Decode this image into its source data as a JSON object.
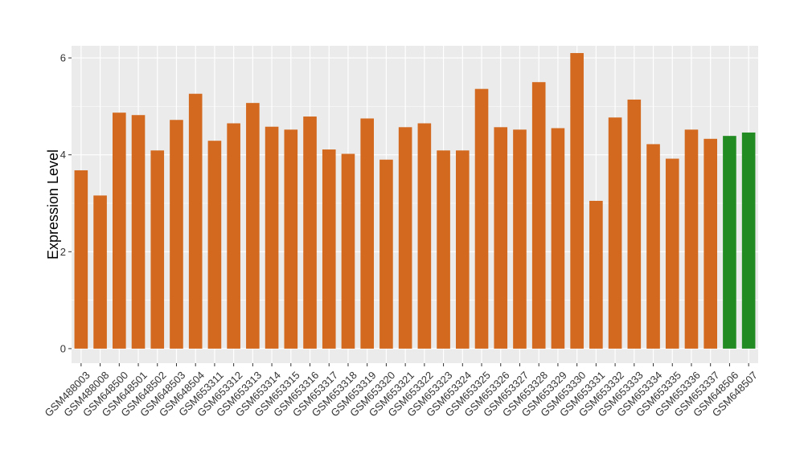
{
  "chart_data": {
    "type": "bar",
    "title": "",
    "xlabel": "",
    "ylabel": "Expression Level",
    "ylim": [
      -0.3,
      6.25
    ],
    "yticks": [
      0,
      2,
      4,
      6
    ],
    "grid": true,
    "categories": [
      "GSM488003",
      "GSM488008",
      "GSM648500",
      "GSM648501",
      "GSM648502",
      "GSM648503",
      "GSM648504",
      "GSM653311",
      "GSM653312",
      "GSM653313",
      "GSM653314",
      "GSM653315",
      "GSM653316",
      "GSM653317",
      "GSM653318",
      "GSM653319",
      "GSM653320",
      "GSM653321",
      "GSM653322",
      "GSM653323",
      "GSM653324",
      "GSM653325",
      "GSM653326",
      "GSM653327",
      "GSM653328",
      "GSM653329",
      "GSM653330",
      "GSM653331",
      "GSM653332",
      "GSM653333",
      "GSM653334",
      "GSM653335",
      "GSM653336",
      "GSM653337",
      "GSM648506",
      "GSM648507"
    ],
    "values": [
      3.68,
      3.16,
      4.87,
      4.82,
      4.09,
      4.72,
      5.26,
      4.29,
      4.65,
      5.07,
      4.58,
      4.52,
      4.79,
      4.11,
      4.02,
      4.75,
      3.9,
      4.57,
      4.65,
      4.09,
      4.09,
      5.36,
      4.57,
      4.52,
      5.5,
      4.55,
      6.1,
      3.05,
      4.77,
      5.14,
      4.22,
      3.92,
      4.52,
      4.33,
      4.39,
      4.46
    ],
    "colors": [
      "#D2691E",
      "#D2691E",
      "#D2691E",
      "#D2691E",
      "#D2691E",
      "#D2691E",
      "#D2691E",
      "#D2691E",
      "#D2691E",
      "#D2691E",
      "#D2691E",
      "#D2691E",
      "#D2691E",
      "#D2691E",
      "#D2691E",
      "#D2691E",
      "#D2691E",
      "#D2691E",
      "#D2691E",
      "#D2691E",
      "#D2691E",
      "#D2691E",
      "#D2691E",
      "#D2691E",
      "#D2691E",
      "#D2691E",
      "#D2691E",
      "#D2691E",
      "#D2691E",
      "#D2691E",
      "#D2691E",
      "#D2691E",
      "#D2691E",
      "#D2691E",
      "#228B22",
      "#228B22"
    ],
    "panel_background": "#EBEBEB",
    "gridline_color": "#FFFFFF"
  }
}
